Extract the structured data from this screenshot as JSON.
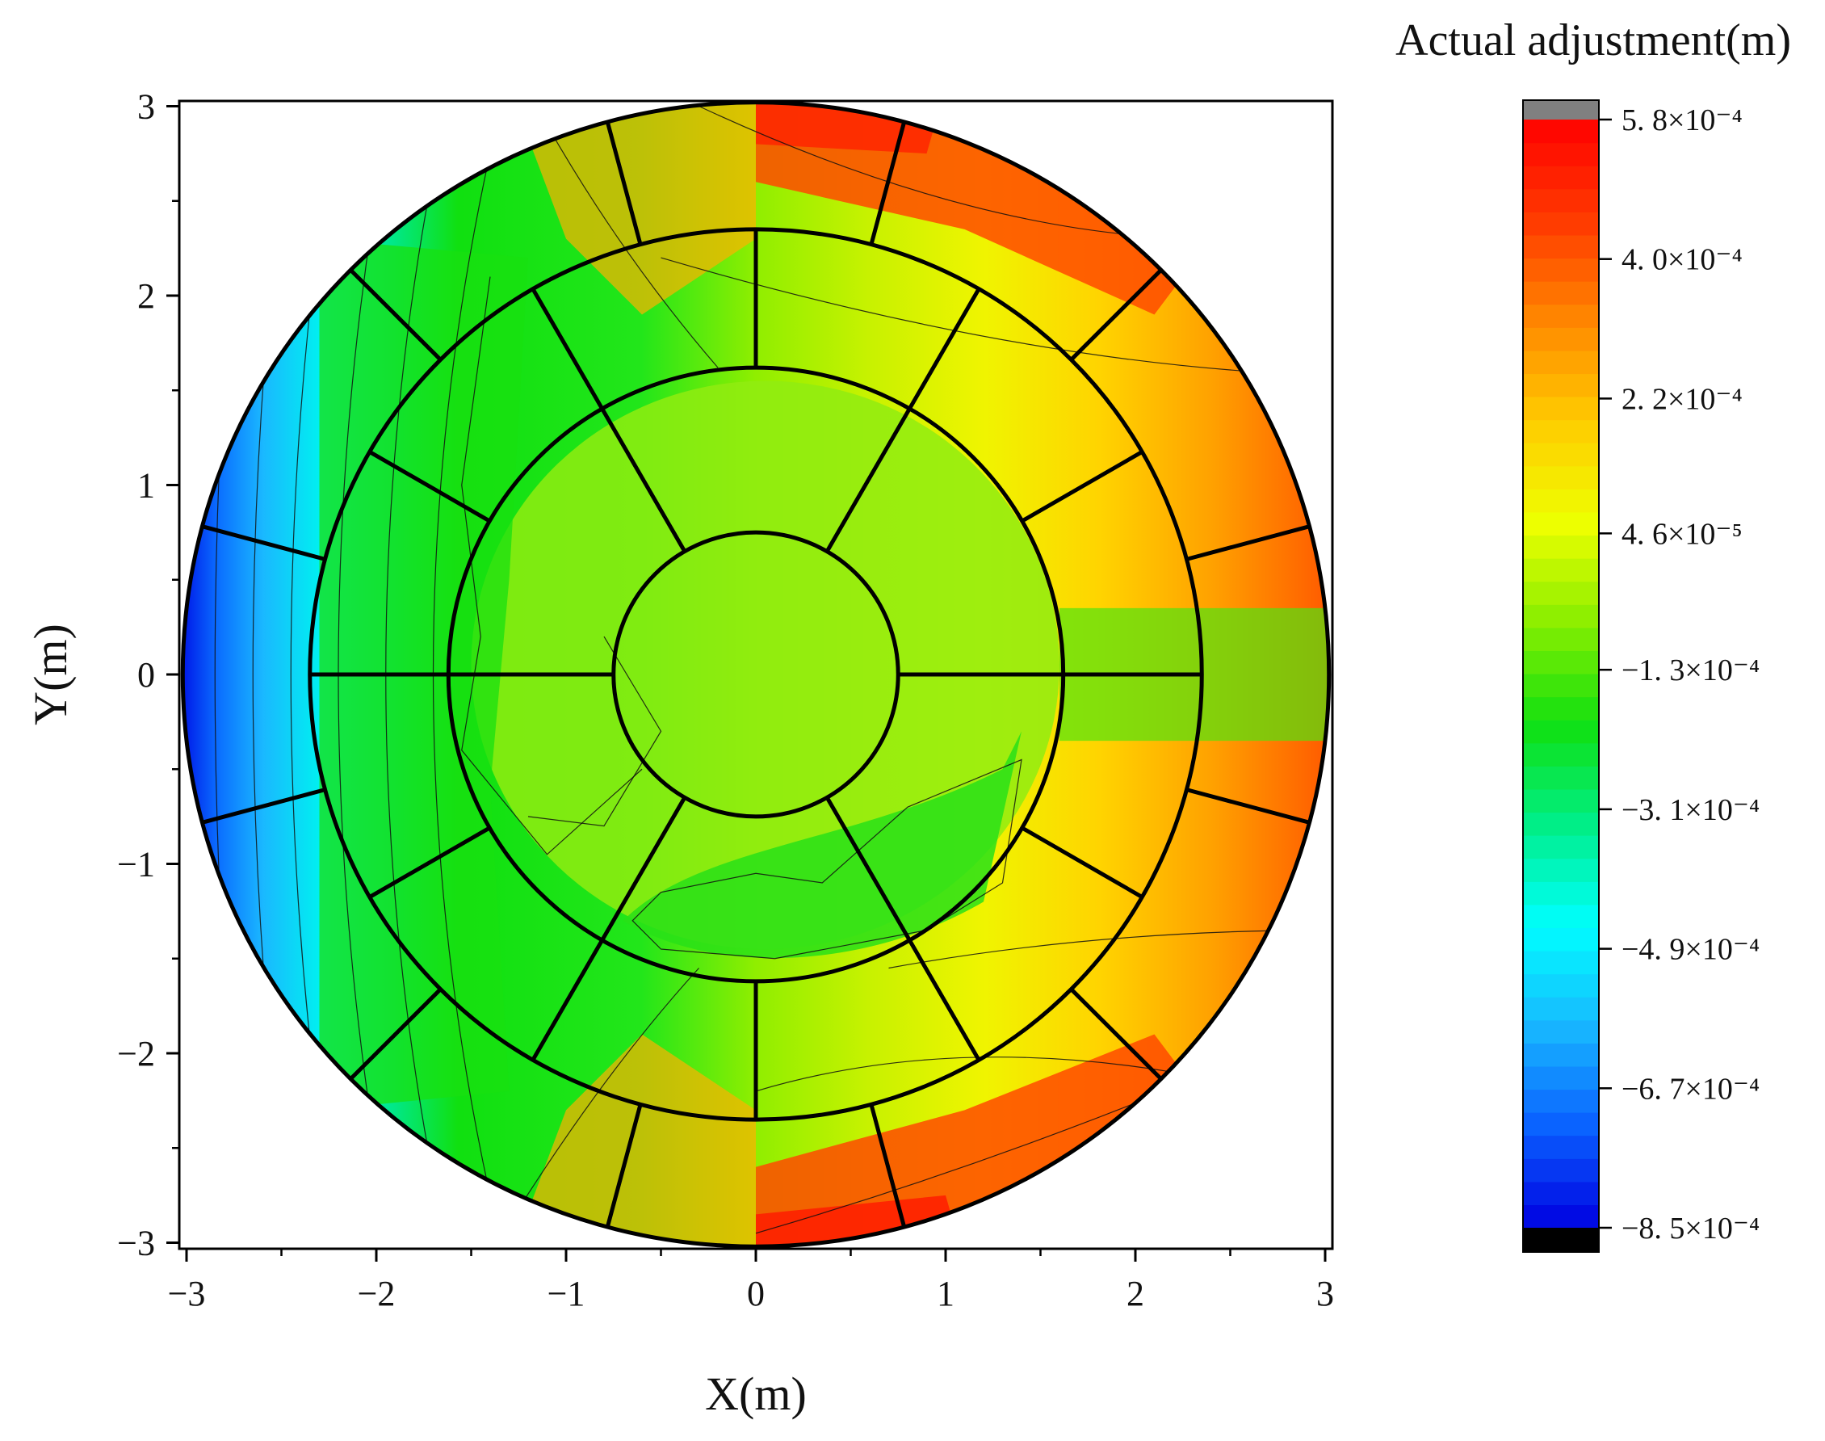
{
  "chart_data": {
    "type": "heatmap",
    "title": "",
    "xlabel": "X(m)",
    "ylabel": "Y(m)",
    "xlim": [
      -3,
      3
    ],
    "ylim": [
      -3,
      3
    ],
    "xticks": [
      -3,
      -2,
      -1,
      0,
      1,
      2,
      3
    ],
    "yticks": [
      -3,
      -2,
      -1,
      0,
      1,
      2,
      3
    ],
    "xtick_labels": [
      "−3",
      "−2",
      "−1",
      "0",
      "1",
      "2",
      "3"
    ],
    "ytick_labels": [
      "−3",
      "−2",
      "−1",
      "0",
      "1",
      "2",
      "3"
    ],
    "grid": false,
    "field": "Actual adjustment over circular reflector (contour fill)",
    "panel_radii_m": [
      0.75,
      1.62,
      2.35,
      3.02
    ],
    "ring_spokes": [
      {
        "r_inner": 0.75,
        "r_outer": 1.62,
        "count": 6,
        "offset_deg": 0
      },
      {
        "r_inner": 1.62,
        "r_outer": 2.35,
        "count": 12,
        "offset_deg": 0
      },
      {
        "r_inner": 2.35,
        "r_outer": 3.02,
        "count": 12,
        "offset_deg": 15
      }
    ],
    "colorbar": {
      "title": "Actual adjustment(m)",
      "ticks": [
        {
          "value": 0.00058,
          "label": "5. 8×10⁻⁴"
        },
        {
          "value": 0.0004,
          "label": "4. 0×10⁻⁴"
        },
        {
          "value": 0.00022,
          "label": "2. 2×10⁻⁴"
        },
        {
          "value": 4.6e-05,
          "label": "4. 6×10⁻⁵"
        },
        {
          "value": -0.00013,
          "label": "−1. 3×10⁻⁴"
        },
        {
          "value": -0.00031,
          "label": "−3. 1×10⁻⁴"
        },
        {
          "value": -0.00049,
          "label": "−4. 9×10⁻⁴"
        },
        {
          "value": -0.00067,
          "label": "−6. 7×10⁻⁴"
        },
        {
          "value": -0.00085,
          "label": "−8. 5×10⁻⁴"
        }
      ],
      "colors": [
        "#0000e0",
        "#0a60ff",
        "#18b8ff",
        "#00ffff",
        "#00ee88",
        "#10e010",
        "#88ee00",
        "#eeff00",
        "#ffcc00",
        "#ff8800",
        "#ff3a00",
        "#ff0000"
      ],
      "over_color": "#808080",
      "under_color": "#000000"
    }
  }
}
